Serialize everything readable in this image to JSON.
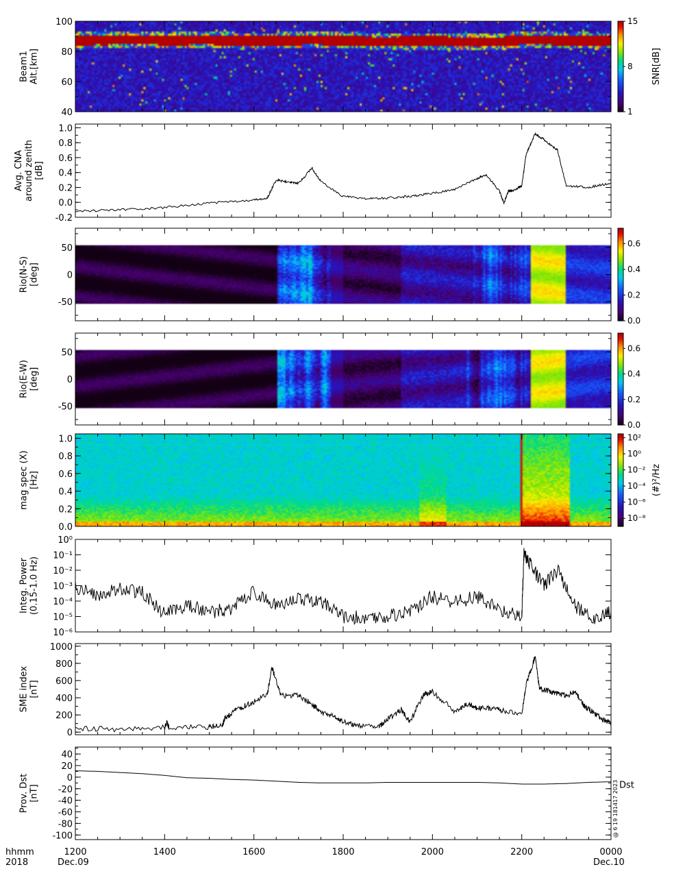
{
  "figure": {
    "xaxis": {
      "row1_label": "hhmm",
      "row2_label": "2018",
      "tick_labels": [
        "1200",
        "1400",
        "1600",
        "1800",
        "2000",
        "2200",
        "0000"
      ],
      "start_date": "Dec.09",
      "end_date": "Dec.10",
      "range_hhmm": [
        1200,
        2400
      ]
    },
    "side_stamp": "@ 6 19 181417 2023",
    "colors": {
      "line": "#000000",
      "saturated": "#b30000",
      "background_low": "#140014"
    }
  },
  "chart_data": [
    {
      "id": "beam-snr",
      "type": "heatmap",
      "ylabel_lines": [
        "Beam1",
        "Alt.[km]"
      ],
      "y_ticks": [
        "40",
        "60",
        "80",
        "100"
      ],
      "ylim": [
        40,
        100
      ],
      "colorbar": {
        "label": "SNR[dB]",
        "ticks": [
          "1",
          "8",
          "15"
        ],
        "range": [
          1,
          15
        ]
      },
      "features": [
        {
          "name": "echo band",
          "altitude_km": [
            83,
            92
          ],
          "snr_db": 15
        }
      ]
    },
    {
      "id": "avg-cna",
      "type": "line",
      "ylabel_lines": [
        "Avg. CNA",
        "around zenith",
        "[dB]"
      ],
      "y_ticks": [
        "-0.2",
        "0.0",
        "0.2",
        "0.4",
        "0.6",
        "0.8",
        "1.0"
      ],
      "ylim": [
        -0.2,
        1.05
      ],
      "x": [
        12.0,
        13.0,
        14.0,
        15.0,
        16.0,
        16.3,
        16.5,
        16.8,
        17.0,
        17.3,
        17.5,
        18.0,
        18.5,
        19.0,
        19.5,
        20.0,
        20.5,
        21.0,
        21.2,
        21.5,
        21.6,
        21.7,
        21.8,
        22.0,
        22.1,
        22.3,
        22.5,
        22.8,
        23.0,
        23.5,
        24.0
      ],
      "y": [
        -0.12,
        -0.1,
        -0.07,
        -0.01,
        0.03,
        0.06,
        0.3,
        0.27,
        0.25,
        0.46,
        0.28,
        0.08,
        0.05,
        0.06,
        0.08,
        0.12,
        0.17,
        0.32,
        0.37,
        0.15,
        -0.01,
        0.15,
        0.16,
        0.22,
        0.65,
        0.92,
        0.84,
        0.7,
        0.22,
        0.2,
        0.26
      ]
    },
    {
      "id": "rio-ns",
      "type": "heatmap",
      "ylabel_lines": [
        "Rio(N-S)",
        "[deg]"
      ],
      "y_ticks": [
        "-50",
        "0",
        "50"
      ],
      "ylim": [
        -85,
        85
      ],
      "colorbar": {
        "label": "",
        "ticks": [
          "0.0",
          "0.2",
          "0.4",
          "0.6"
        ],
        "range": [
          0,
          0.72
        ]
      }
    },
    {
      "id": "rio-ew",
      "type": "heatmap",
      "ylabel_lines": [
        "Rio(E-W)",
        "[deg]"
      ],
      "y_ticks": [
        "-50",
        "0",
        "50"
      ],
      "ylim": [
        -85,
        85
      ],
      "colorbar": {
        "label": "",
        "ticks": [
          "0.0",
          "0.2",
          "0.4",
          "0.6"
        ],
        "range": [
          0,
          0.72
        ]
      }
    },
    {
      "id": "mag-spec",
      "type": "heatmap",
      "ylabel_lines": [
        "mag spec (X)",
        "[Hz]"
      ],
      "y_ticks": [
        "0.0",
        "0.2",
        "0.4",
        "0.6",
        "0.8",
        "1.0"
      ],
      "ylim": [
        0,
        1.05
      ],
      "colorbar": {
        "label": "(#)²/Hz",
        "ticks": [
          "10²",
          "10⁰",
          "10⁻²",
          "10⁻⁴",
          "10⁻⁶",
          "10⁻⁸"
        ],
        "log": true,
        "range": [
          1e-09,
          300
        ]
      }
    },
    {
      "id": "integ-power",
      "type": "line",
      "log_y": true,
      "ylabel_lines": [
        "Integ. Power",
        "(0.15-1.0 Hz)"
      ],
      "y_ticks": [
        "10⁰",
        "10⁻¹",
        "10⁻²",
        "10⁻³",
        "10⁻⁴",
        "10⁻⁵",
        "10⁻⁶"
      ],
      "ylim": [
        1e-06,
        1
      ],
      "x": [
        12.0,
        12.5,
        13.0,
        13.5,
        14.0,
        14.5,
        15.0,
        15.5,
        16.0,
        16.5,
        17.0,
        17.5,
        18.0,
        18.5,
        19.0,
        19.5,
        20.0,
        20.5,
        21.0,
        21.5,
        22.0,
        22.05,
        22.2,
        22.5,
        22.8,
        23.2,
        23.6,
        24.0
      ],
      "y": [
        0.0008,
        0.00025,
        0.0006,
        0.00035,
        1.5e-05,
        5e-05,
        2e-05,
        3e-05,
        0.0004,
        5e-05,
        0.00015,
        0.0001,
        1e-05,
        8e-06,
        1e-05,
        2e-05,
        0.0002,
        8e-05,
        0.0002,
        3e-05,
        1e-05,
        0.1,
        0.02,
        0.001,
        0.01,
        5e-05,
        6e-06,
        2e-05
      ]
    },
    {
      "id": "sme-index",
      "type": "line",
      "ylabel_lines": [
        "SME index",
        "[nT]"
      ],
      "y_ticks": [
        "0",
        "200",
        "400",
        "600",
        "800",
        "1000"
      ],
      "ylim": [
        -30,
        1030
      ],
      "x": [
        12.0,
        13.0,
        14.0,
        14.05,
        14.1,
        15.0,
        15.3,
        15.35,
        15.6,
        15.9,
        16.3,
        16.4,
        16.6,
        17.0,
        17.3,
        17.5,
        17.8,
        18.0,
        18.3,
        18.8,
        19.0,
        19.3,
        19.5,
        19.8,
        20.0,
        20.5,
        20.8,
        21.0,
        21.3,
        21.6,
        22.0,
        22.1,
        22.3,
        22.4,
        22.6,
        22.8,
        23.0,
        23.2,
        23.4,
        23.6,
        23.8,
        24.0
      ],
      "y": [
        40,
        35,
        55,
        110,
        50,
        60,
        80,
        160,
        260,
        330,
        430,
        760,
        430,
        420,
        330,
        230,
        180,
        120,
        80,
        60,
        150,
        260,
        120,
        440,
        470,
        240,
        330,
        280,
        280,
        250,
        200,
        550,
        880,
        500,
        480,
        450,
        420,
        480,
        300,
        230,
        150,
        100
      ]
    },
    {
      "id": "prov-dst",
      "type": "line",
      "ylabel_lines": [
        "Prov. Dst",
        "[nT]"
      ],
      "y_ticks": [
        "-100",
        "-80",
        "-60",
        "-40",
        "-20",
        "0",
        "20",
        "40"
      ],
      "ylim": [
        -108,
        52
      ],
      "legend": "Dst",
      "x": [
        12.0,
        12.5,
        13.0,
        13.5,
        14.0,
        14.5,
        15.0,
        15.5,
        16.0,
        16.5,
        17.0,
        17.5,
        18.0,
        18.5,
        19.0,
        19.5,
        20.0,
        20.5,
        21.0,
        21.5,
        22.0,
        22.5,
        23.0,
        23.5,
        24.0
      ],
      "y": [
        11,
        10,
        8,
        6,
        3,
        -1,
        -2,
        -4,
        -5,
        -7,
        -9,
        -10,
        -10,
        -10,
        -9,
        -9,
        -9,
        -9,
        -9,
        -10,
        -12,
        -12,
        -11,
        -9,
        -8
      ]
    }
  ]
}
